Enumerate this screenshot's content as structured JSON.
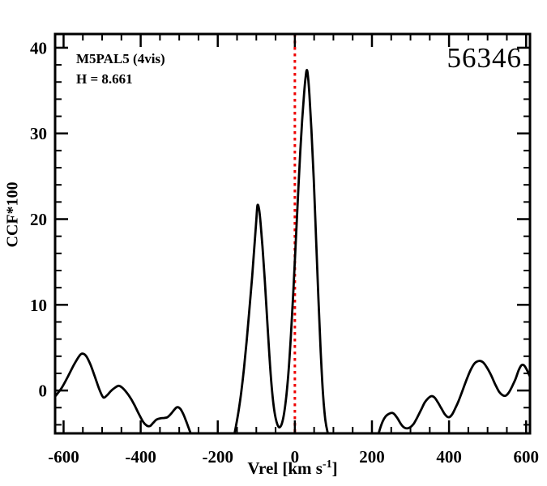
{
  "colors": {
    "background": "#ffffff",
    "axis": "#000000",
    "curve": "#000000",
    "refline": "#ee0000",
    "text": "#000000"
  },
  "chart_data": {
    "type": "line",
    "title": "",
    "xlabel": "Vrel [km s^-1]",
    "xlabel_parts": {
      "pre": "Vrel [km s",
      "sup": "-1",
      "post": "]"
    },
    "ylabel": "CCF*100",
    "xlim": [
      -622,
      610
    ],
    "ylim": [
      -5,
      41.6
    ],
    "x_major_ticks": [
      -600,
      -400,
      -200,
      0,
      200,
      400,
      600
    ],
    "x_tick_labels": [
      "-600",
      "-400",
      "-200",
      "0",
      "200",
      "400",
      "600"
    ],
    "x_minor_step": 50,
    "y_major_ticks": [
      0,
      10,
      20,
      30,
      40
    ],
    "y_tick_labels": [
      "0",
      "10",
      "20",
      "30",
      "40"
    ],
    "y_minor_step": 2,
    "grid": false,
    "legend_position": "none",
    "annotations": {
      "target": "M5PAL5 (4vis)",
      "h_mag": "H = 8.661",
      "id": "56346"
    },
    "reference_line": {
      "x": 0,
      "color": "#ee0000",
      "style": "dotted"
    },
    "series": [
      {
        "name": "CCF",
        "color": "#000000",
        "segments": [
          [
            [
              -622,
              -0.7
            ],
            [
              -605,
              0.3
            ],
            [
              -588,
              1.7
            ],
            [
              -572,
              3.1
            ],
            [
              -558,
              4.1
            ],
            [
              -550,
              4.3
            ],
            [
              -541,
              4.0
            ],
            [
              -530,
              3.0
            ],
            [
              -518,
              1.5
            ],
            [
              -507,
              0.1
            ],
            [
              -497,
              -0.8
            ],
            [
              -487,
              -0.55
            ],
            [
              -477,
              -0.05
            ],
            [
              -466,
              0.35
            ],
            [
              -457,
              0.55
            ],
            [
              -447,
              0.3
            ],
            [
              -437,
              -0.2
            ],
            [
              -426,
              -0.9
            ],
            [
              -415,
              -1.8
            ],
            [
              -404,
              -2.8
            ],
            [
              -393,
              -3.7
            ],
            [
              -384,
              -4.1
            ],
            [
              -376,
              -4.15
            ],
            [
              -368,
              -3.8
            ],
            [
              -359,
              -3.4
            ],
            [
              -349,
              -3.25
            ],
            [
              -339,
              -3.2
            ],
            [
              -330,
              -3.1
            ],
            [
              -321,
              -2.7
            ],
            [
              -312,
              -2.2
            ],
            [
              -305,
              -1.95
            ],
            [
              -297,
              -2.15
            ],
            [
              -289,
              -2.8
            ],
            [
              -281,
              -3.7
            ],
            [
              -272,
              -4.8
            ],
            [
              -264,
              -5.8
            ]
          ],
          [
            [
              -160,
              -5.8
            ],
            [
              -153,
              -4.2
            ],
            [
              -146,
              -2.4
            ],
            [
              -139,
              -0.2
            ],
            [
              -132,
              2.6
            ],
            [
              -125,
              5.8
            ],
            [
              -118,
              9.4
            ],
            [
              -111,
              13.2
            ],
            [
              -105,
              16.8
            ],
            [
              -100,
              19.9
            ],
            [
              -97,
              21.6
            ],
            [
              -93,
              21.2
            ],
            [
              -89,
              19.6
            ],
            [
              -84,
              16.8
            ],
            [
              -78,
              12.8
            ],
            [
              -72,
              8.4
            ],
            [
              -66,
              4.0
            ],
            [
              -60,
              0.4
            ],
            [
              -55,
              -1.8
            ],
            [
              -50,
              -3.2
            ],
            [
              -45,
              -4.0
            ],
            [
              -40,
              -4.3
            ],
            [
              -34,
              -3.9
            ],
            [
              -28,
              -2.7
            ],
            [
              -22,
              -0.6
            ],
            [
              -16,
              2.4
            ],
            [
              -10,
              6.6
            ],
            [
              -4,
              11.6
            ],
            [
              2,
              17.0
            ],
            [
              8,
              22.6
            ],
            [
              14,
              27.8
            ],
            [
              19,
              31.6
            ],
            [
              24,
              34.7
            ],
            [
              28,
              36.6
            ],
            [
              31,
              37.4
            ],
            [
              34,
              36.7
            ],
            [
              38,
              34.4
            ],
            [
              43,
              30.4
            ],
            [
              49,
              24.6
            ],
            [
              55,
              17.8
            ],
            [
              61,
              10.8
            ],
            [
              67,
              4.6
            ],
            [
              73,
              -0.4
            ],
            [
              79,
              -3.4
            ],
            [
              85,
              -4.9
            ],
            [
              91,
              -5.8
            ]
          ],
          [
            [
              213,
              -5.8
            ],
            [
              220,
              -4.6
            ],
            [
              228,
              -3.6
            ],
            [
              236,
              -3.0
            ],
            [
              245,
              -2.7
            ],
            [
              253,
              -2.62
            ],
            [
              259,
              -2.8
            ],
            [
              267,
              -3.3
            ],
            [
              275,
              -3.9
            ],
            [
              283,
              -4.3
            ],
            [
              291,
              -4.42
            ],
            [
              299,
              -4.3
            ],
            [
              308,
              -3.9
            ],
            [
              317,
              -3.2
            ],
            [
              327,
              -2.3
            ],
            [
              337,
              -1.4
            ],
            [
              346,
              -0.9
            ],
            [
              354,
              -0.66
            ],
            [
              362,
              -0.8
            ],
            [
              370,
              -1.3
            ],
            [
              379,
              -2.0
            ],
            [
              388,
              -2.7
            ],
            [
              395,
              -3.05
            ],
            [
              401,
              -3.1
            ],
            [
              408,
              -2.8
            ],
            [
              416,
              -2.1
            ],
            [
              425,
              -1.2
            ],
            [
              435,
              0.0
            ],
            [
              445,
              1.2
            ],
            [
              456,
              2.4
            ],
            [
              467,
              3.2
            ],
            [
              478,
              3.45
            ],
            [
              488,
              3.3
            ],
            [
              498,
              2.7
            ],
            [
              509,
              1.8
            ],
            [
              520,
              0.7
            ],
            [
              530,
              -0.15
            ],
            [
              539,
              -0.55
            ],
            [
              547,
              -0.6
            ],
            [
              555,
              -0.25
            ],
            [
              564,
              0.5
            ],
            [
              573,
              1.4
            ],
            [
              581,
              2.4
            ],
            [
              588,
              2.95
            ],
            [
              594,
              2.95
            ],
            [
              601,
              2.5
            ],
            [
              607,
              1.9
            ],
            [
              610,
              1.6
            ]
          ]
        ]
      }
    ]
  }
}
